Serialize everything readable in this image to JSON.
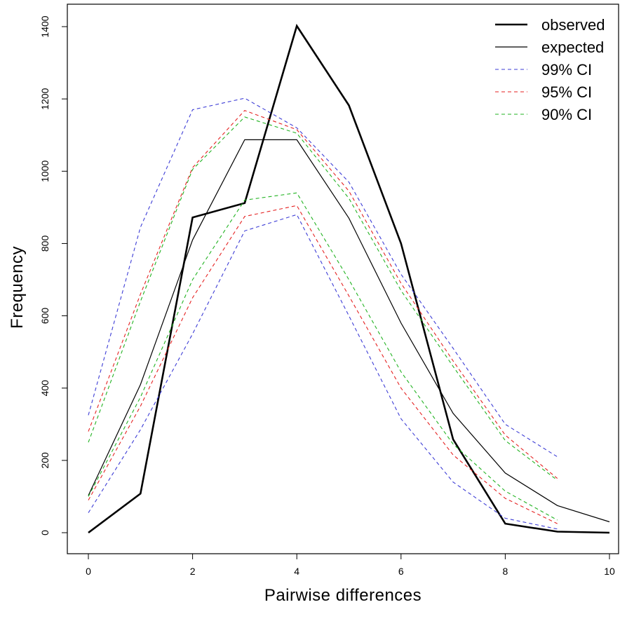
{
  "chart_data": {
    "type": "line",
    "title": "",
    "xlabel": "Pairwise differences",
    "ylabel": "Frequency",
    "xlim": [
      -0.3,
      10.3
    ],
    "ylim": [
      -56,
      1460
    ],
    "x_ticks": [
      0,
      2,
      4,
      6,
      8,
      10
    ],
    "y_ticks": [
      0,
      200,
      400,
      600,
      800,
      1000,
      1200,
      1400
    ],
    "grid": false,
    "legend_position": "top-right",
    "series": [
      {
        "name": "observed",
        "color": "#000000",
        "style": "solid-thick",
        "x": [
          0,
          1,
          2,
          3,
          4,
          5,
          6,
          7,
          8,
          9,
          10
        ],
        "y": [
          0,
          108,
          872,
          912,
          1402,
          1182,
          800,
          258,
          25,
          3,
          0
        ]
      },
      {
        "name": "expected",
        "color": "#000000",
        "style": "solid-thin",
        "x": [
          0,
          1,
          2,
          3,
          4,
          5,
          6,
          7,
          8,
          9,
          10
        ],
        "y": [
          103,
          410,
          810,
          1087,
          1087,
          870,
          580,
          330,
          165,
          75,
          30
        ]
      },
      {
        "name": "99% CI",
        "color": "#3d3dd6",
        "style": "dashed",
        "x": [
          0,
          1,
          2,
          3,
          4,
          5,
          6,
          7,
          8,
          9
        ],
        "y": [
          325,
          845,
          1170,
          1202,
          1120,
          970,
          715,
          510,
          300,
          210
        ]
      },
      {
        "name": "",
        "color": "#3d3dd6",
        "style": "dashed",
        "x": [
          0,
          1,
          2,
          3,
          4,
          5,
          6,
          7,
          8,
          9
        ],
        "y": [
          55,
          285,
          550,
          835,
          880,
          600,
          315,
          140,
          40,
          10
        ]
      },
      {
        "name": "95% CI",
        "color": "#e52222",
        "style": "dashed",
        "x": [
          0,
          1,
          2,
          3,
          4,
          5,
          6,
          7,
          8,
          9
        ],
        "y": [
          280,
          660,
          1010,
          1168,
          1115,
          945,
          690,
          475,
          270,
          150
        ]
      },
      {
        "name": "",
        "color": "#e52222",
        "style": "dashed",
        "x": [
          0,
          1,
          2,
          3,
          4,
          5,
          6,
          7,
          8,
          9
        ],
        "y": [
          90,
          350,
          650,
          875,
          905,
          655,
          400,
          215,
          95,
          25
        ]
      },
      {
        "name": "90% CI",
        "color": "#22b322",
        "style": "dashed",
        "x": [
          0,
          1,
          2,
          3,
          4,
          5,
          6,
          7,
          8,
          9
        ],
        "y": [
          250,
          640,
          1005,
          1150,
          1105,
          925,
          670,
          460,
          255,
          145
        ]
      },
      {
        "name": "",
        "color": "#22b322",
        "style": "dashed",
        "x": [
          0,
          1,
          2,
          3,
          4,
          5,
          6,
          7,
          8,
          9
        ],
        "y": [
          100,
          375,
          700,
          920,
          940,
          700,
          445,
          245,
          115,
          35
        ]
      }
    ]
  }
}
